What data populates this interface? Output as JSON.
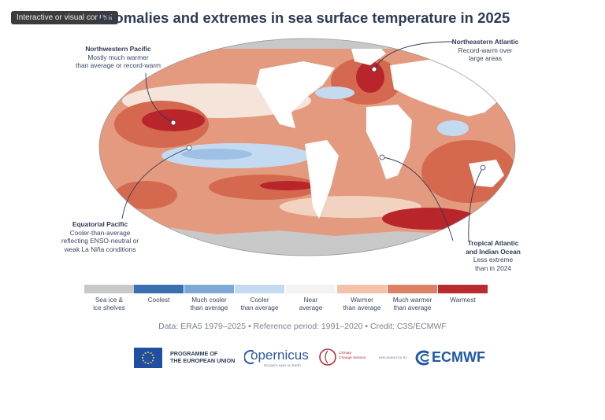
{
  "badge": "Interactive or visual content",
  "title": "Anomalies and extremes in sea surface temperature in 2025",
  "callouts": {
    "northwestern_pacific": {
      "heading": "Northwestern Pacific",
      "line1": "Mostly much warmer",
      "line2": "than average or record-warm"
    },
    "northeastern_atlantic": {
      "heading": "Northeastern Atlantic",
      "line1": "Record-warm over",
      "line2": "large areas"
    },
    "equatorial_pacific": {
      "heading": "Equatorial Pacific",
      "line1": "Cooler-than-average",
      "line2": "reflecting ENSO-neutral or",
      "line3": "weak La Niña conditions"
    },
    "tropical_atlantic_indian": {
      "heading1": "Tropical Atlantic",
      "heading2": "and Indian Ocean",
      "line1": "Less extreme",
      "line2": "than in 2024"
    }
  },
  "legend": [
    {
      "line1": "Sea ice &",
      "line2": "ice shelves",
      "color": "#c8c8c8"
    },
    {
      "line1": "Coolest",
      "line2": "",
      "color": "#3b6fb0"
    },
    {
      "line1": "Much cooler",
      "line2": "than average",
      "color": "#7ea9d6"
    },
    {
      "line1": "Cooler",
      "line2": "than average",
      "color": "#c4daf0"
    },
    {
      "line1": "Near",
      "line2": "average",
      "color": "#f5f3f1"
    },
    {
      "line1": "Warmer",
      "line2": "than average",
      "color": "#f2c3aa"
    },
    {
      "line1": "Much warmer",
      "line2": "than average",
      "color": "#dc8166"
    },
    {
      "line1": "Warmest",
      "line2": "",
      "color": "#ba2b2f"
    }
  ],
  "source": "Data: ERA5 1979–2025 • Reference period: 1991–2020 • Credit: C3S/ECMWF",
  "logos": {
    "eu_line1": "PROGRAMME OF",
    "eu_line2": "THE EUROPEAN UNION",
    "copernicus": "opernicus",
    "copernicus_sub": "Europe's eyes on Earth",
    "c3s_line1": "Climate",
    "c3s_line2": "Change Service",
    "implemented_by": "IMPLEMENTED BY",
    "ecmwf": "ECMWF"
  },
  "colors": {
    "ocean_warm": "#e49a7e",
    "ocean_much_warm": "#d4694f",
    "ocean_warmest": "#b8262b",
    "ocean_cool": "#c4daf0",
    "land": "#ffffff",
    "ice": "#c8c8c8"
  }
}
